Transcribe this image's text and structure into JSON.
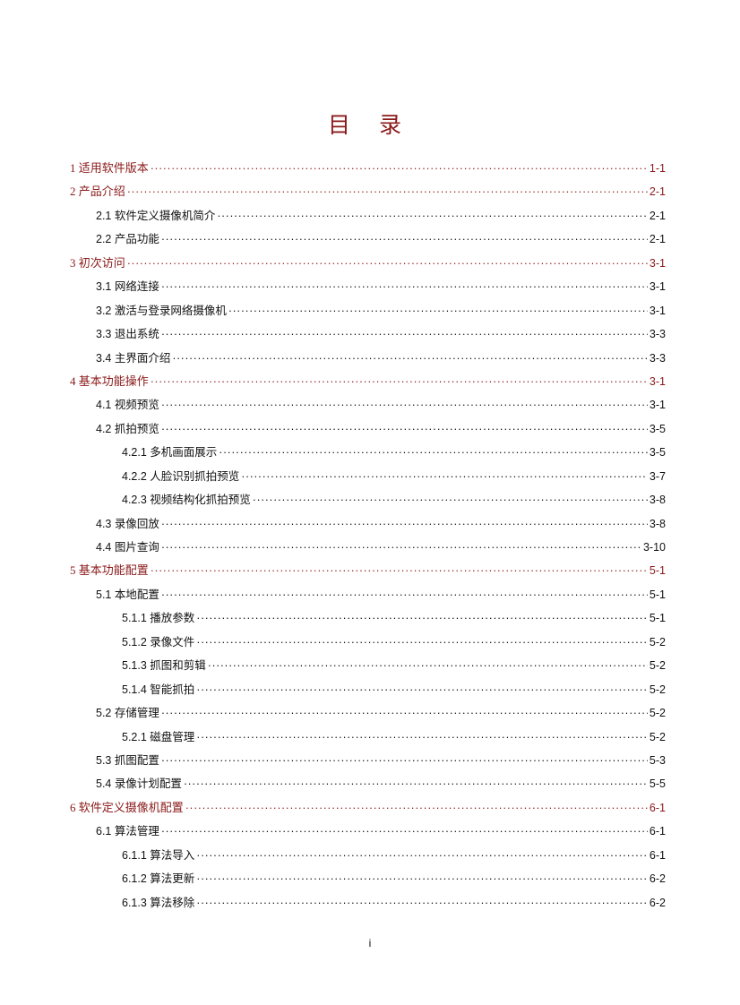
{
  "title": "目 录",
  "entries": [
    {
      "level": 1,
      "label": "1 适用软件版本",
      "page": "1-1"
    },
    {
      "level": 1,
      "label": "2 产品介绍",
      "page": "2-1"
    },
    {
      "level": 2,
      "label": "2.1 软件定义摄像机简介",
      "page": "2-1"
    },
    {
      "level": 2,
      "label": "2.2 产品功能",
      "page": "2-1"
    },
    {
      "level": 1,
      "label": "3 初次访问",
      "page": "3-1"
    },
    {
      "level": 2,
      "label": "3.1 网络连接",
      "page": "3-1"
    },
    {
      "level": 2,
      "label": "3.2 激活与登录网络摄像机",
      "page": "3-1"
    },
    {
      "level": 2,
      "label": "3.3 退出系统",
      "page": "3-3"
    },
    {
      "level": 2,
      "label": "3.4 主界面介绍",
      "page": "3-3"
    },
    {
      "level": 1,
      "label": "4 基本功能操作",
      "page": "3-1"
    },
    {
      "level": 2,
      "label": "4.1 视频预览",
      "page": "3-1"
    },
    {
      "level": 2,
      "label": "4.2 抓拍预览",
      "page": "3-5"
    },
    {
      "level": 3,
      "label": "4.2.1 多机画面展示",
      "page": "3-5"
    },
    {
      "level": 3,
      "label": "4.2.2 人脸识别抓拍预览",
      "page": "3-7"
    },
    {
      "level": 3,
      "label": "4.2.3 视频结构化抓拍预览",
      "page": "3-8"
    },
    {
      "level": 2,
      "label": "4.3 录像回放",
      "page": "3-8"
    },
    {
      "level": 2,
      "label": "4.4 图片查询",
      "page": "3-10"
    },
    {
      "level": 1,
      "label": "5 基本功能配置",
      "page": "5-1"
    },
    {
      "level": 2,
      "label": "5.1 本地配置",
      "page": "5-1"
    },
    {
      "level": 3,
      "label": "5.1.1 播放参数",
      "page": "5-1"
    },
    {
      "level": 3,
      "label": "5.1.2 录像文件",
      "page": "5-2"
    },
    {
      "level": 3,
      "label": "5.1.3 抓图和剪辑",
      "page": "5-2"
    },
    {
      "level": 3,
      "label": "5.1.4 智能抓拍",
      "page": "5-2"
    },
    {
      "level": 2,
      "label": "5.2 存储管理",
      "page": "5-2"
    },
    {
      "level": 3,
      "label": "5.2.1 磁盘管理",
      "page": "5-2"
    },
    {
      "level": 2,
      "label": "5.3 抓图配置",
      "page": "5-3"
    },
    {
      "level": 2,
      "label": "5.4 录像计划配置",
      "page": "5-5"
    },
    {
      "level": 1,
      "label": "6 软件定义摄像机配置",
      "page": "6-1"
    },
    {
      "level": 2,
      "label": "6.1 算法管理",
      "page": "6-1"
    },
    {
      "level": 3,
      "label": "6.1.1 算法导入",
      "page": "6-1"
    },
    {
      "level": 3,
      "label": "6.1.2 算法更新",
      "page": "6-2"
    },
    {
      "level": 3,
      "label": "6.1.3 算法移除",
      "page": "6-2"
    }
  ],
  "footer": {
    "page_number": "i"
  },
  "colors": {
    "heading": "#8b1a1a",
    "text": "#111111"
  }
}
